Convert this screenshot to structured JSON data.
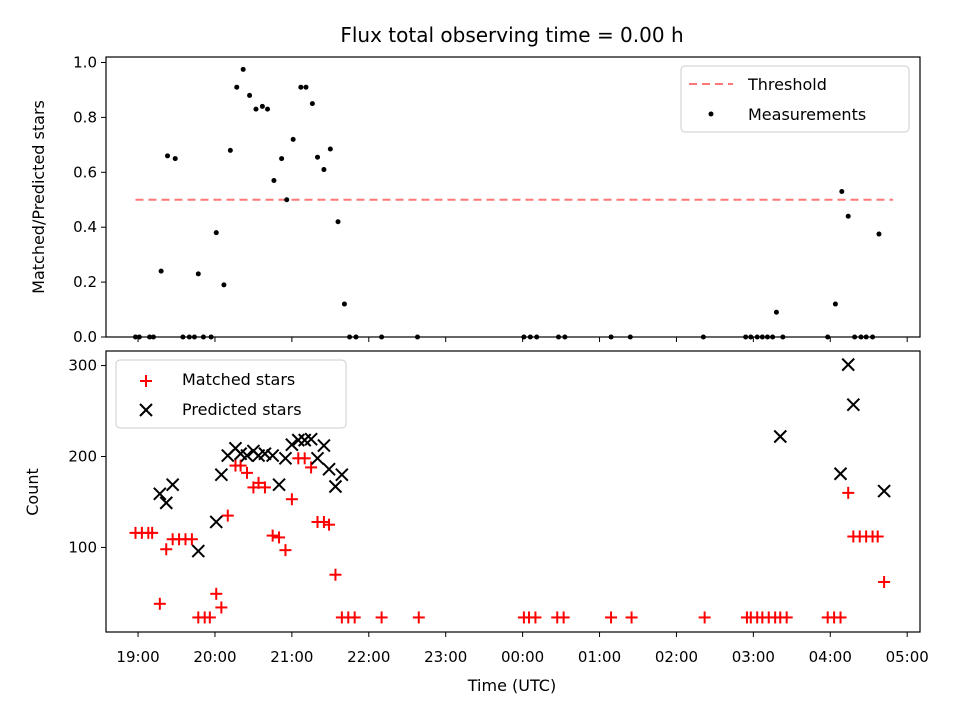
{
  "chart_data": [
    {
      "type": "scatter",
      "title": "Flux total observing time = 0.00 h",
      "xlabel": "",
      "ylabel": "Matched/Predicted stars",
      "xlim": [
        "18:35",
        "05:10"
      ],
      "ylim": [
        0,
        1.02
      ],
      "yticks": [
        "0.0",
        "0.2",
        "0.4",
        "0.6",
        "0.8",
        "1.0"
      ],
      "threshold": {
        "name": "Threshold",
        "value": 0.5,
        "x_start": "18:58",
        "x_end": "04:49",
        "color": "#ff7777"
      },
      "series": [
        {
          "name": "Measurements",
          "color": "#000000",
          "points": [
            [
              "18:58",
              0.0
            ],
            [
              "19:01",
              0.0
            ],
            [
              "19:09",
              0.0
            ],
            [
              "19:12",
              0.0
            ],
            [
              "19:18",
              0.24
            ],
            [
              "19:23",
              0.66
            ],
            [
              "19:29",
              0.65
            ],
            [
              "19:35",
              0.0
            ],
            [
              "19:40",
              0.0
            ],
            [
              "19:44",
              0.0
            ],
            [
              "19:47",
              0.23
            ],
            [
              "19:51",
              0.0
            ],
            [
              "19:57",
              0.0
            ],
            [
              "20:01",
              0.38
            ],
            [
              "20:07",
              0.19
            ],
            [
              "20:12",
              0.68
            ],
            [
              "20:17",
              0.91
            ],
            [
              "20:22",
              0.975
            ],
            [
              "20:27",
              0.88
            ],
            [
              "20:32",
              0.83
            ],
            [
              "20:37",
              0.84
            ],
            [
              "20:41",
              0.83
            ],
            [
              "20:46",
              0.57
            ],
            [
              "20:52",
              0.65
            ],
            [
              "20:56",
              0.5
            ],
            [
              "21:01",
              0.72
            ],
            [
              "21:07",
              0.91
            ],
            [
              "21:11",
              0.91
            ],
            [
              "21:16",
              0.85
            ],
            [
              "21:20",
              0.655
            ],
            [
              "21:25",
              0.61
            ],
            [
              "21:30",
              0.685
            ],
            [
              "21:36",
              0.42
            ],
            [
              "21:41",
              0.12
            ],
            [
              "21:45",
              0.0
            ],
            [
              "21:50",
              0.0
            ],
            [
              "22:10",
              0.0
            ],
            [
              "22:38",
              0.0
            ],
            [
              "00:01",
              0.0
            ],
            [
              "00:06",
              0.0
            ],
            [
              "00:11",
              0.0
            ],
            [
              "00:28",
              0.0
            ],
            [
              "00:33",
              0.0
            ],
            [
              "01:09",
              0.0
            ],
            [
              "01:24",
              0.0
            ],
            [
              "02:21",
              0.0
            ],
            [
              "02:54",
              0.0
            ],
            [
              "02:58",
              0.0
            ],
            [
              "03:03",
              0.0
            ],
            [
              "03:07",
              0.0
            ],
            [
              "03:11",
              0.0
            ],
            [
              "03:15",
              0.0
            ],
            [
              "03:18",
              0.09
            ],
            [
              "03:23",
              0.0
            ],
            [
              "03:58",
              0.0
            ],
            [
              "04:04",
              0.12
            ],
            [
              "04:09",
              0.53
            ],
            [
              "04:14",
              0.44
            ],
            [
              "04:19",
              0.0
            ],
            [
              "04:24",
              0.0
            ],
            [
              "04:28",
              0.0
            ],
            [
              "04:33",
              0.0
            ],
            [
              "04:38",
              0.375
            ]
          ]
        }
      ],
      "legend": {
        "placement": "top-right",
        "entries": [
          "Threshold",
          "Measurements"
        ]
      }
    },
    {
      "type": "scatter",
      "title": "",
      "xlabel": "Time (UTC)",
      "ylabel": "Count",
      "xlim": [
        "18:35",
        "05:10"
      ],
      "ylim": [
        7,
        316
      ],
      "yticks": [
        "100",
        "200",
        "300"
      ],
      "xticks": [
        "19:00",
        "20:00",
        "21:00",
        "22:00",
        "23:00",
        "00:00",
        "01:00",
        "02:00",
        "03:00",
        "04:00",
        "05:00"
      ],
      "series": [
        {
          "name": "Matched stars",
          "marker": "plus",
          "color": "#ff0000",
          "points": [
            [
              "18:58",
              116
            ],
            [
              "19:03",
              116
            ],
            [
              "19:08",
              116
            ],
            [
              "19:11",
              116
            ],
            [
              "19:17",
              38
            ],
            [
              "19:22",
              98
            ],
            [
              "19:27",
              109
            ],
            [
              "19:32",
              109
            ],
            [
              "19:37",
              109
            ],
            [
              "19:42",
              109
            ],
            [
              "19:47",
              23
            ],
            [
              "19:52",
              23
            ],
            [
              "19:56",
              23
            ],
            [
              "20:01",
              49
            ],
            [
              "20:05",
              34
            ],
            [
              "20:10",
              135
            ],
            [
              "20:16",
              190
            ],
            [
              "20:20",
              190
            ],
            [
              "20:25",
              182
            ],
            [
              "20:30",
              166
            ],
            [
              "20:34",
              171
            ],
            [
              "20:39",
              166
            ],
            [
              "20:45",
              113
            ],
            [
              "20:50",
              111
            ],
            [
              "20:55",
              97
            ],
            [
              "21:00",
              153
            ],
            [
              "21:05",
              198
            ],
            [
              "21:10",
              198
            ],
            [
              "21:15",
              188
            ],
            [
              "21:20",
              128
            ],
            [
              "21:25",
              128
            ],
            [
              "21:29",
              125
            ],
            [
              "21:34",
              70
            ],
            [
              "21:39",
              23
            ],
            [
              "21:44",
              23
            ],
            [
              "21:49",
              23
            ],
            [
              "22:10",
              23
            ],
            [
              "22:39",
              23
            ],
            [
              "00:01",
              23
            ],
            [
              "00:05",
              23
            ],
            [
              "00:10",
              23
            ],
            [
              "00:27",
              23
            ],
            [
              "00:32",
              23
            ],
            [
              "01:09",
              23
            ],
            [
              "01:25",
              23
            ],
            [
              "02:22",
              23
            ],
            [
              "02:55",
              23
            ],
            [
              "02:58",
              23
            ],
            [
              "03:03",
              23
            ],
            [
              "03:07",
              23
            ],
            [
              "03:12",
              23
            ],
            [
              "03:17",
              23
            ],
            [
              "03:21",
              23
            ],
            [
              "03:26",
              23
            ],
            [
              "03:58",
              23
            ],
            [
              "04:03",
              23
            ],
            [
              "04:08",
              23
            ],
            [
              "04:14",
              160
            ],
            [
              "04:18",
              112
            ],
            [
              "04:23",
              112
            ],
            [
              "04:28",
              112
            ],
            [
              "04:33",
              112
            ],
            [
              "04:37",
              112
            ],
            [
              "04:42",
              62
            ]
          ]
        },
        {
          "name": "Predicted stars",
          "marker": "x",
          "color": "#000000",
          "points": [
            [
              "19:17",
              159
            ],
            [
              "19:22",
              149
            ],
            [
              "19:27",
              169
            ],
            [
              "19:47",
              96
            ],
            [
              "20:01",
              128
            ],
            [
              "20:05",
              180
            ],
            [
              "20:10",
              201
            ],
            [
              "20:16",
              209
            ],
            [
              "20:20",
              203
            ],
            [
              "20:25",
              201
            ],
            [
              "20:30",
              206
            ],
            [
              "20:34",
              201
            ],
            [
              "20:39",
              203
            ],
            [
              "20:45",
              201
            ],
            [
              "20:50",
              169
            ],
            [
              "20:55",
              198
            ],
            [
              "21:00",
              213
            ],
            [
              "21:05",
              218
            ],
            [
              "21:10",
              218
            ],
            [
              "21:15",
              219
            ],
            [
              "21:20",
              198
            ],
            [
              "21:25",
              212
            ],
            [
              "21:29",
              186
            ],
            [
              "21:34",
              167
            ],
            [
              "21:39",
              180
            ],
            [
              "03:21",
              222
            ],
            [
              "04:08",
              181
            ],
            [
              "04:14",
              301
            ],
            [
              "04:18",
              257
            ],
            [
              "04:42",
              162
            ]
          ]
        }
      ],
      "legend": {
        "placement": "top-left",
        "entries": [
          "Matched stars",
          "Predicted stars"
        ]
      }
    }
  ]
}
